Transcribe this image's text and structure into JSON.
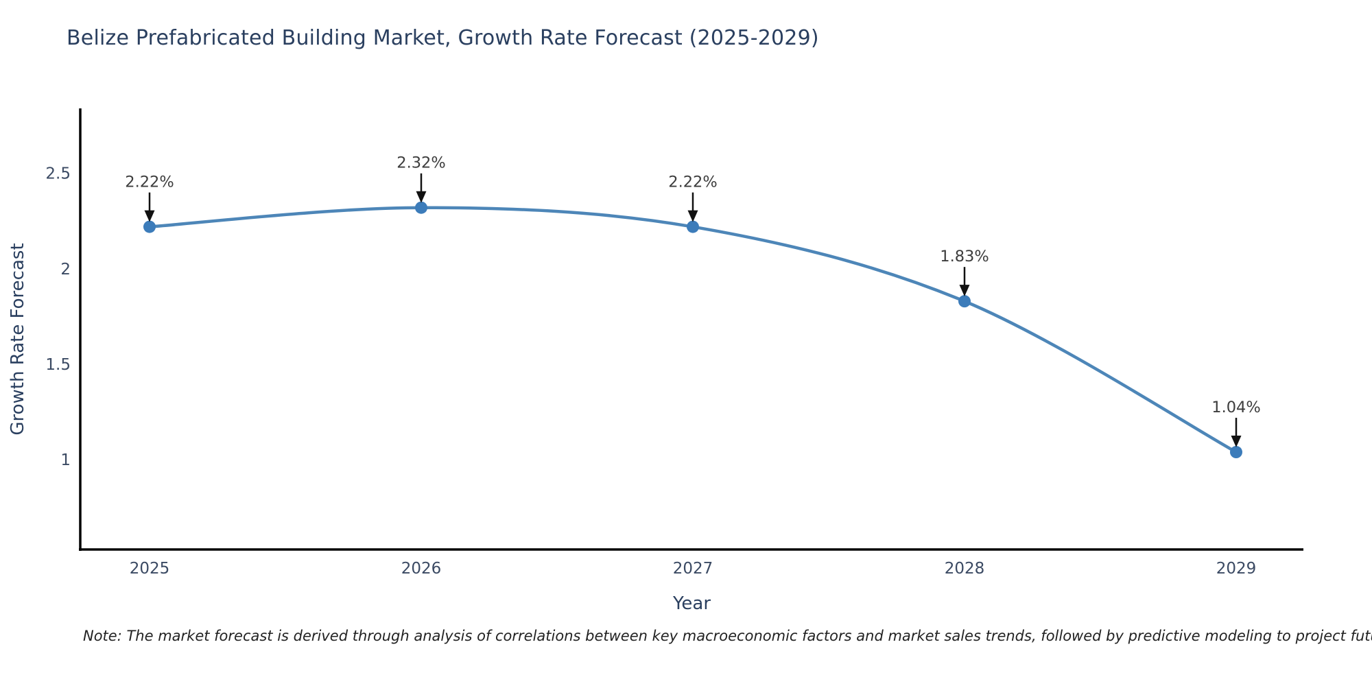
{
  "title": "Belize Prefabricated Building Market, Growth Rate Forecast (2025-2029)",
  "note": "Note: The market forecast is derived through analysis of correlations between key macroeconomic factors and market sales trends, followed by predictive modeling to project future sales",
  "chart_data": {
    "type": "line",
    "title": "Belize Prefabricated Building Market, Growth Rate Forecast (2025-2029)",
    "xlabel": "Year",
    "ylabel": "Growth Rate Forecast",
    "categories": [
      "2025",
      "2026",
      "2027",
      "2028",
      "2029"
    ],
    "series": [
      {
        "name": "Growth Rate Forecast",
        "values": [
          2.22,
          2.32,
          2.22,
          1.83,
          1.04
        ],
        "point_labels": [
          "2.22%",
          "2.32%",
          "2.22%",
          "1.83%",
          "1.04%"
        ]
      }
    ],
    "y_ticks": [
      2.5,
      2,
      1.5,
      1
    ],
    "ylim": [
      0.53,
      2.84
    ],
    "grid": false,
    "legend_position": "none",
    "curve": "spline",
    "annotations_style": "down-arrow-to-point",
    "colors": {
      "line": "#4d86b8",
      "marker": "#3c7cba",
      "axis": "#000000",
      "title_text": "#2a3f5f",
      "tick_text": "#3b4a63",
      "annotation_text": "#3d3d3d",
      "arrow": "#111111"
    }
  }
}
